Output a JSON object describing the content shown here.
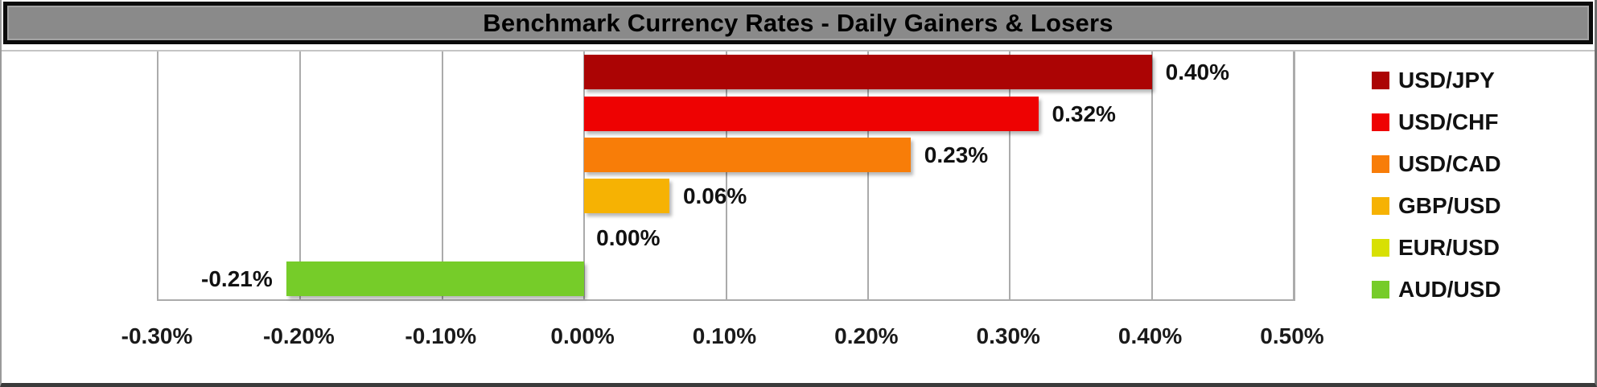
{
  "title": "Benchmark Currency Rates - Daily Gainers & Losers",
  "colors": {
    "title_bar_bg": "#8a8a8a",
    "title_text": "#000000",
    "gridline": "#ababab",
    "axis_text": "#1a1a1a",
    "plot_bg": "#ffffff"
  },
  "chart_data": {
    "type": "bar",
    "orientation": "horizontal",
    "title": "Benchmark Currency Rates - Daily Gainers & Losers",
    "categories": [
      "USD/JPY",
      "USD/CHF",
      "USD/CAD",
      "GBP/USD",
      "EUR/USD",
      "AUD/USD"
    ],
    "values": [
      0.4,
      0.32,
      0.23,
      0.06,
      0.0,
      -0.21
    ],
    "data_labels": [
      "0.40%",
      "0.32%",
      "0.23%",
      "0.06%",
      "0.00%",
      "-0.21%"
    ],
    "bar_colors": [
      "#ab0404",
      "#ee0202",
      "#f87d08",
      "#f6b203",
      "#d8e003",
      "#76cc29"
    ],
    "xlim": [
      -0.3,
      0.5
    ],
    "x_tick_values": [
      -0.3,
      -0.2,
      -0.1,
      0.0,
      0.1,
      0.2,
      0.3,
      0.4,
      0.5
    ],
    "x_tick_labels": [
      "-0.30%",
      "-0.20%",
      "-0.10%",
      "0.00%",
      "0.10%",
      "0.20%",
      "0.30%",
      "0.40%",
      "0.50%"
    ],
    "grid": true,
    "legend_position": "right",
    "legend": [
      {
        "label": "USD/JPY",
        "color": "#ab0404"
      },
      {
        "label": "USD/CHF",
        "color": "#ee0202"
      },
      {
        "label": "USD/CAD",
        "color": "#f87d08"
      },
      {
        "label": "GBP/USD",
        "color": "#f6b203"
      },
      {
        "label": "EUR/USD",
        "color": "#d8e003"
      },
      {
        "label": "AUD/USD",
        "color": "#76cc29"
      }
    ]
  }
}
